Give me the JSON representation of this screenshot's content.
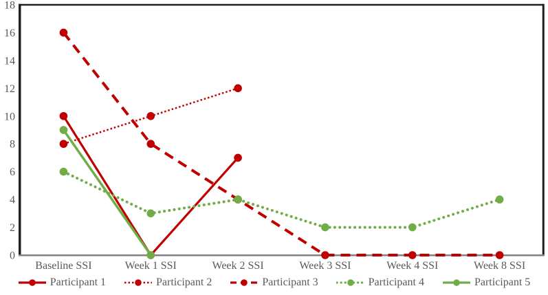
{
  "chart_data": {
    "type": "line",
    "title": "",
    "xlabel": "",
    "ylabel": "",
    "categories": [
      "Baseline SSI",
      "Week 1 SSI",
      "Week 2 SSI",
      "Week 3 SSI",
      "Week 4 SSI",
      "Week 8 SSI"
    ],
    "series": [
      {
        "name": "Participant 1",
        "color": "#C00000",
        "style": "solid",
        "line_width": 3.2,
        "values": [
          10,
          0,
          7,
          null,
          null,
          null
        ]
      },
      {
        "name": "Participant 2",
        "color": "#C00000",
        "style": "dotted",
        "line_width": 2.5,
        "values": [
          8,
          10,
          12,
          null,
          null,
          null
        ]
      },
      {
        "name": "Participant 3",
        "color": "#C00000",
        "style": "dashed",
        "line_width": 4.0,
        "values": [
          16,
          8,
          4,
          0,
          0,
          0
        ]
      },
      {
        "name": "Participant 4",
        "color": "#70AD47",
        "style": "round-dotted",
        "line_width": 4.0,
        "values": [
          6,
          3,
          4,
          2,
          2,
          4
        ]
      },
      {
        "name": "Participant 5",
        "color": "#70AD47",
        "style": "solid",
        "line_width": 3.5,
        "values": [
          9,
          0,
          null,
          null,
          null,
          null
        ]
      }
    ],
    "ylim": [
      0,
      18
    ],
    "ytick_step": 2,
    "grid": false,
    "legend_position": "bottom",
    "axis_text_color": "#595959",
    "plot_border_color": "#1f1f1f",
    "baseline_axis_color": "#808080",
    "marker": "circle"
  }
}
